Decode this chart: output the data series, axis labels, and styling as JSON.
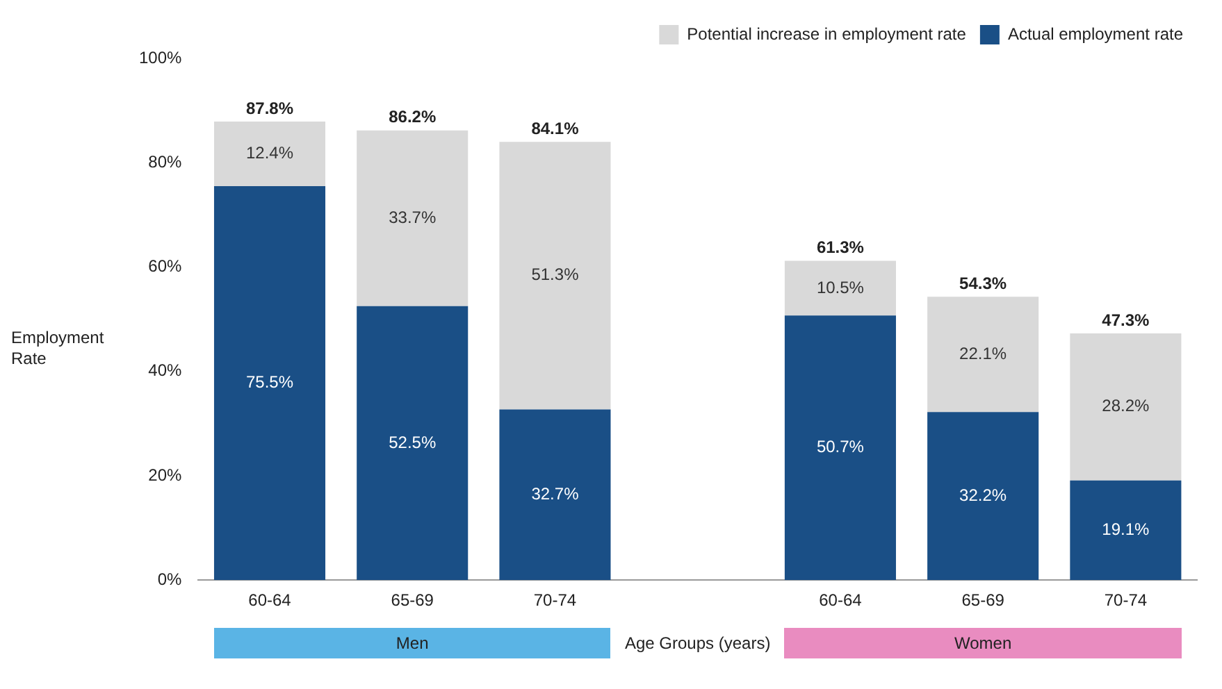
{
  "chart_data": {
    "type": "bar",
    "stacked": true,
    "xlabel": "Age Groups (years)",
    "ylabel": "Employment Rate",
    "categories": [
      "60-64",
      "65-69",
      "70-74",
      null,
      "60-64",
      "65-69",
      "70-74"
    ],
    "series": [
      {
        "name": "Actual employment rate",
        "color": "#1a4f86",
        "values": [
          75.5,
          52.5,
          32.7,
          null,
          50.7,
          32.2,
          19.1
        ],
        "value_labels": [
          "75.5%",
          "52.5%",
          "32.7%",
          null,
          "50.7%",
          "32.2%",
          "19.1%"
        ]
      },
      {
        "name": "Potential increase in employment rate",
        "color": "#d9d9d9",
        "values": [
          12.4,
          33.7,
          51.3,
          null,
          10.5,
          22.1,
          28.2
        ],
        "value_labels": [
          "12.4%",
          "33.7%",
          "51.3%",
          null,
          "10.5%",
          "22.1%",
          "28.2%"
        ]
      }
    ],
    "totals": [
      "87.8%",
      "86.2%",
      "84.1%",
      null,
      "61.3%",
      "54.3%",
      "47.3%"
    ],
    "ylim": [
      0,
      100
    ],
    "yticks": [
      {
        "value": 0,
        "label": "0%"
      },
      {
        "value": 20,
        "label": "20%"
      },
      {
        "value": 40,
        "label": "40%"
      },
      {
        "value": 60,
        "label": "60%"
      },
      {
        "value": 80,
        "label": "80%"
      },
      {
        "value": 100,
        "label": "100%"
      }
    ],
    "grid": false,
    "legend": "top right",
    "annotations": [
      "Men",
      "Women"
    ]
  }
}
